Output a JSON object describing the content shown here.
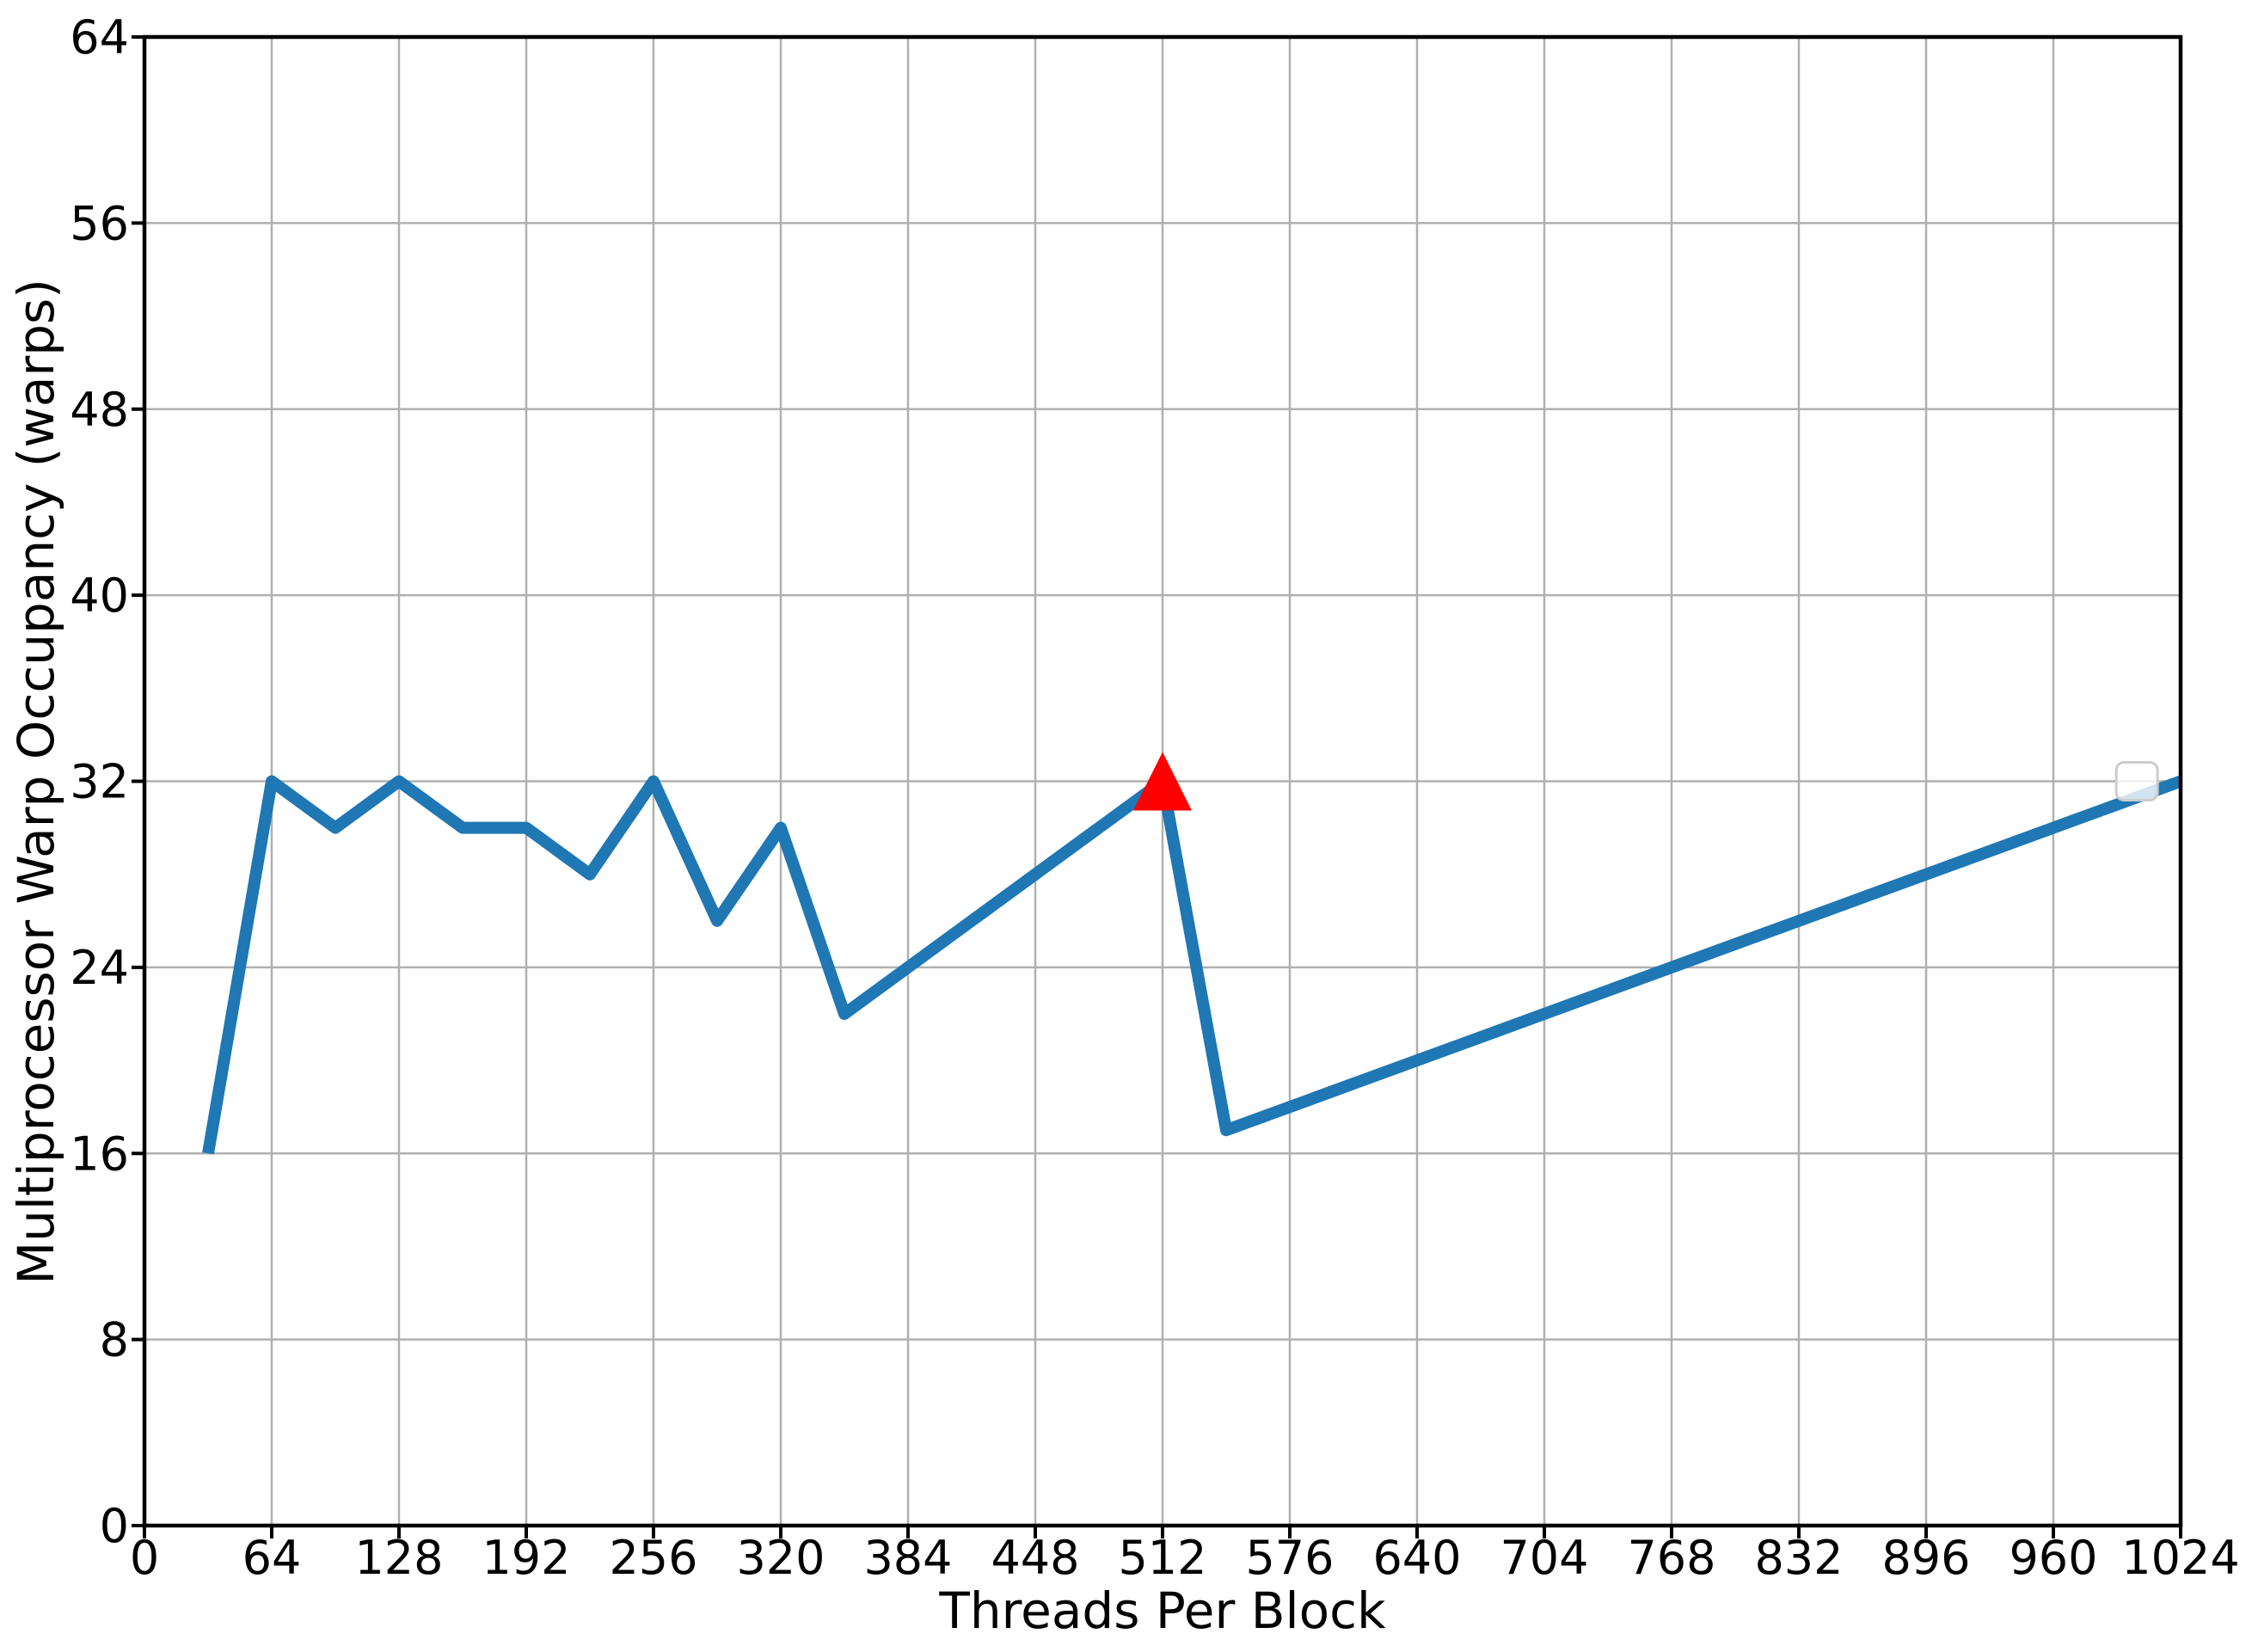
{
  "figure": {
    "background": "#ffffff"
  },
  "chart_data": {
    "type": "line",
    "title": "",
    "xlabel": "Threads Per Block",
    "ylabel": "Multiprocessor Warp Occupancy (warps)",
    "x": [
      32,
      64,
      96,
      128,
      160,
      192,
      224,
      256,
      288,
      320,
      352,
      384,
      416,
      448,
      480,
      512,
      544,
      576,
      608,
      640,
      672,
      704,
      736,
      768,
      800,
      832,
      864,
      896,
      928,
      960,
      992,
      1024
    ],
    "y": [
      16,
      32,
      30,
      32,
      30,
      30,
      28,
      32,
      26,
      30,
      22,
      24,
      26,
      28,
      30,
      32,
      17,
      18,
      19,
      20,
      21,
      22,
      23,
      24,
      25,
      26,
      27,
      28,
      29,
      30,
      31,
      32
    ],
    "xlim": [
      0,
      1024
    ],
    "ylim": [
      0,
      64
    ],
    "x_ticks": [
      0,
      64,
      128,
      192,
      256,
      320,
      384,
      448,
      512,
      576,
      640,
      704,
      768,
      832,
      896,
      960,
      1024
    ],
    "y_ticks": [
      0,
      8,
      16,
      24,
      32,
      40,
      48,
      56,
      64
    ],
    "grid": true,
    "grid_color": "#b0b0b0",
    "line_color": "#1f77b4",
    "line_width": 14,
    "axis_color": "#000000",
    "background": "#ffffff",
    "selected_point": {
      "x": 512,
      "y": 32,
      "marker": "triangle-up",
      "color": "#ff0000",
      "size": 34
    },
    "legend_box": {
      "empty": true,
      "x": 1002,
      "y": 32,
      "fill": "#ffffff",
      "border": "#cccccc"
    }
  }
}
